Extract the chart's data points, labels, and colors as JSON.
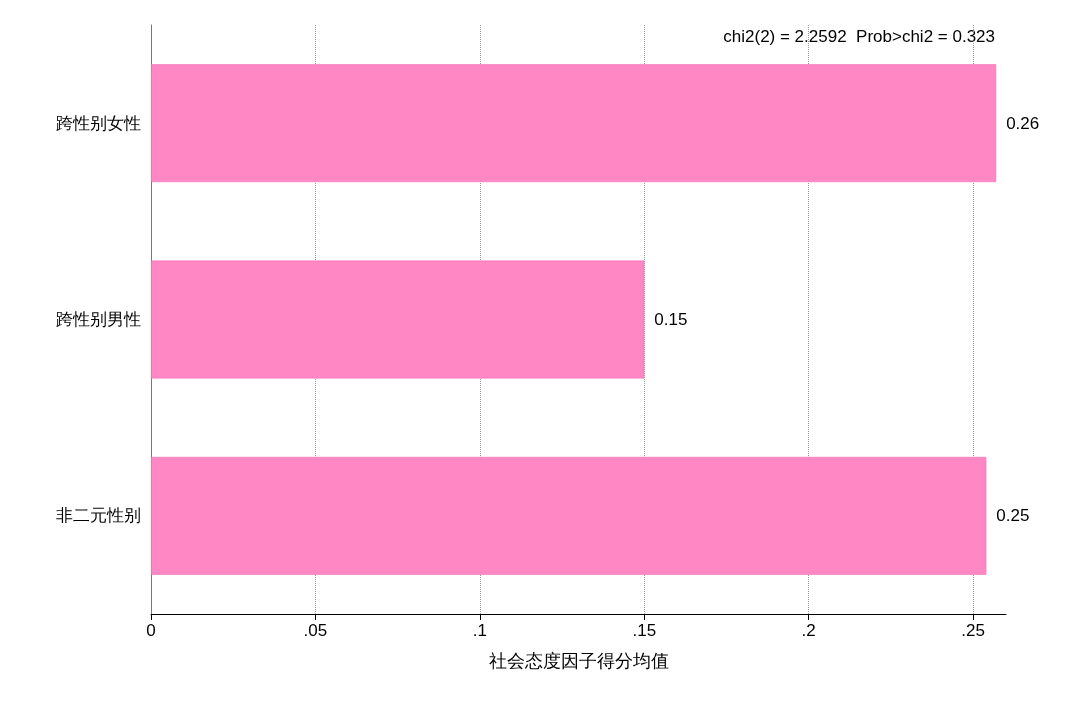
{
  "chart_data": {
    "type": "bar",
    "orientation": "horizontal",
    "xlabel": "社会态度因子得分均值",
    "categories": [
      "跨性别女性",
      "跨性别男性",
      "非二元性别"
    ],
    "values": [
      0.257,
      0.15,
      0.254
    ],
    "value_labels": [
      "0.26",
      "0.15",
      "0.25"
    ],
    "color": "#ff88c4",
    "xlim": [
      0,
      0.26
    ],
    "xticks": [
      {
        "value": 0,
        "label": "0"
      },
      {
        "value": 0.05,
        "label": ".05"
      },
      {
        "value": 0.1,
        "label": ".1"
      },
      {
        "value": 0.15,
        "label": ".15"
      },
      {
        "value": 0.2,
        "label": ".2"
      },
      {
        "value": 0.25,
        "label": ".25"
      }
    ],
    "grid": "x",
    "annotations": [
      "chi2(2) = 2.2592  Prob>chi2 = 0.323"
    ]
  }
}
